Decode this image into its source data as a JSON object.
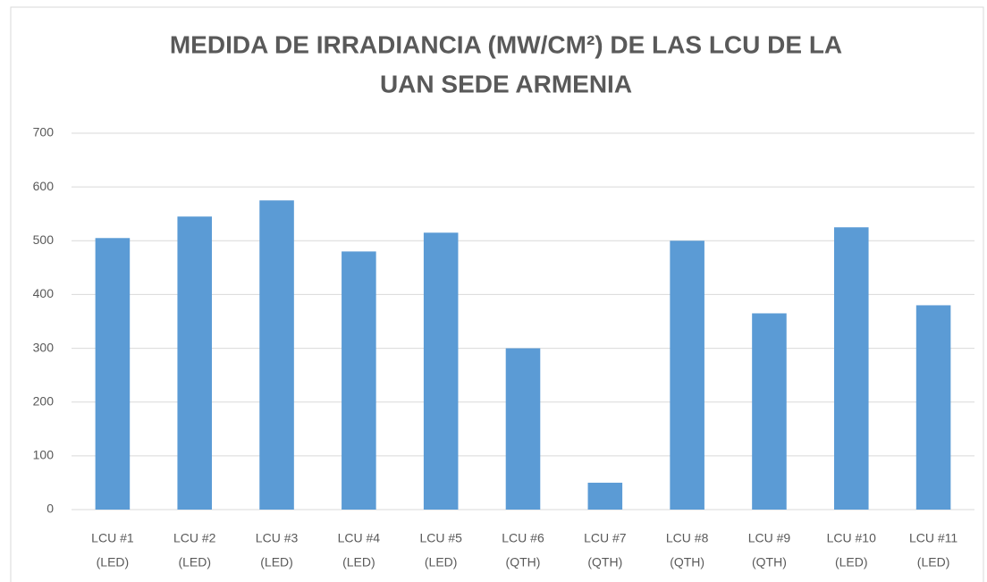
{
  "chart_data": {
    "type": "bar",
    "title": [
      "MEDIDA DE IRRADIANCIA (MW/CM²) DE LAS LCU DE LA",
      "UAN SEDE ARMENIA"
    ],
    "categories": [
      [
        "LCU #1",
        "(LED)"
      ],
      [
        "LCU #2",
        "(LED)"
      ],
      [
        "LCU #3",
        "(LED)"
      ],
      [
        "LCU #4",
        "(LED)"
      ],
      [
        "LCU #5",
        "(LED)"
      ],
      [
        "LCU #6",
        "(QTH)"
      ],
      [
        "LCU #7",
        "(QTH)"
      ],
      [
        "LCU #8",
        "(QTH)"
      ],
      [
        "LCU #9",
        "(QTH)"
      ],
      [
        "LCU #10",
        "(LED)"
      ],
      [
        "LCU #11",
        "(LED)"
      ]
    ],
    "values": [
      505,
      545,
      575,
      480,
      515,
      300,
      50,
      500,
      365,
      525,
      380
    ],
    "color": "#5b9bd5",
    "ylim": [
      0,
      700
    ],
    "yticks": [
      0,
      100,
      200,
      300,
      400,
      500,
      600,
      700
    ],
    "grid": true
  }
}
